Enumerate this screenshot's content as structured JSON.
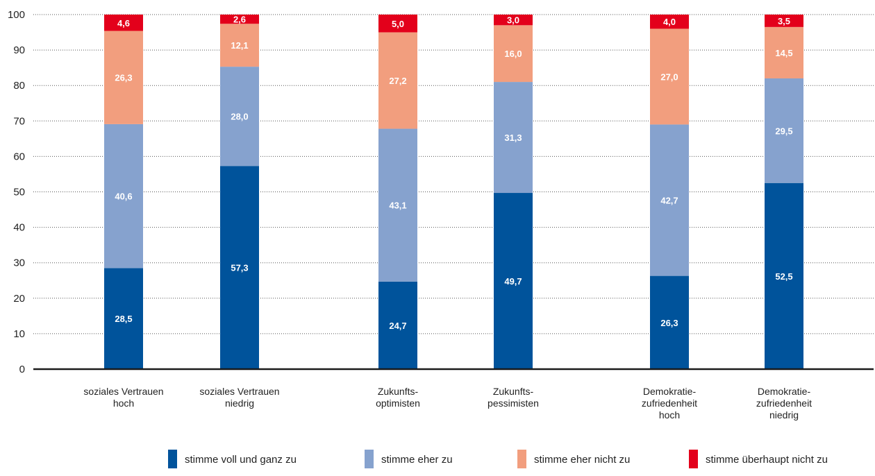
{
  "chart_data": {
    "type": "bar",
    "stacked": true,
    "ylim": [
      0,
      100
    ],
    "yticks": [
      0,
      10,
      20,
      30,
      40,
      50,
      60,
      70,
      80,
      90,
      100
    ],
    "grid": true,
    "legend_position": "bottom",
    "categories": [
      [
        "soziales Vertrauen",
        "hoch"
      ],
      [
        "soziales Vertrauen",
        "niedrig"
      ],
      [
        "Zukunfts-",
        "optimisten"
      ],
      [
        "Zukunfts-",
        "pessimisten"
      ],
      [
        "Demokratie-",
        "zufriedenheit",
        "hoch"
      ],
      [
        "Demokratie-",
        "zufriedenheit",
        "niedrig"
      ]
    ],
    "series": [
      {
        "name": "stimme voll und ganz zu",
        "color": "#00539B",
        "values": [
          28.5,
          57.3,
          24.7,
          49.7,
          26.3,
          52.5
        ],
        "labels": [
          "28,5",
          "57,3",
          "24,7",
          "49,7",
          "26,3",
          "52,5"
        ]
      },
      {
        "name": "stimme eher zu",
        "color": "#86A2CE",
        "values": [
          40.6,
          28.0,
          43.1,
          31.3,
          42.7,
          29.5
        ],
        "labels": [
          "40,6",
          "28,0",
          "43,1",
          "31,3",
          "42,7",
          "29,5"
        ]
      },
      {
        "name": "stimme eher nicht zu",
        "color": "#F29E7E",
        "values": [
          26.3,
          12.1,
          27.2,
          16.0,
          27.0,
          14.5
        ],
        "labels": [
          "26,3",
          "12,1",
          "27,2",
          "16,0",
          "27,0",
          "14,5"
        ]
      },
      {
        "name": "stimme überhaupt nicht zu",
        "color": "#E3001B",
        "values": [
          4.6,
          2.6,
          5.0,
          3.0,
          4.0,
          3.5
        ],
        "labels": [
          "4,6",
          "2,6",
          "5,0",
          "3,0",
          "4,0",
          "3,5"
        ]
      }
    ]
  }
}
